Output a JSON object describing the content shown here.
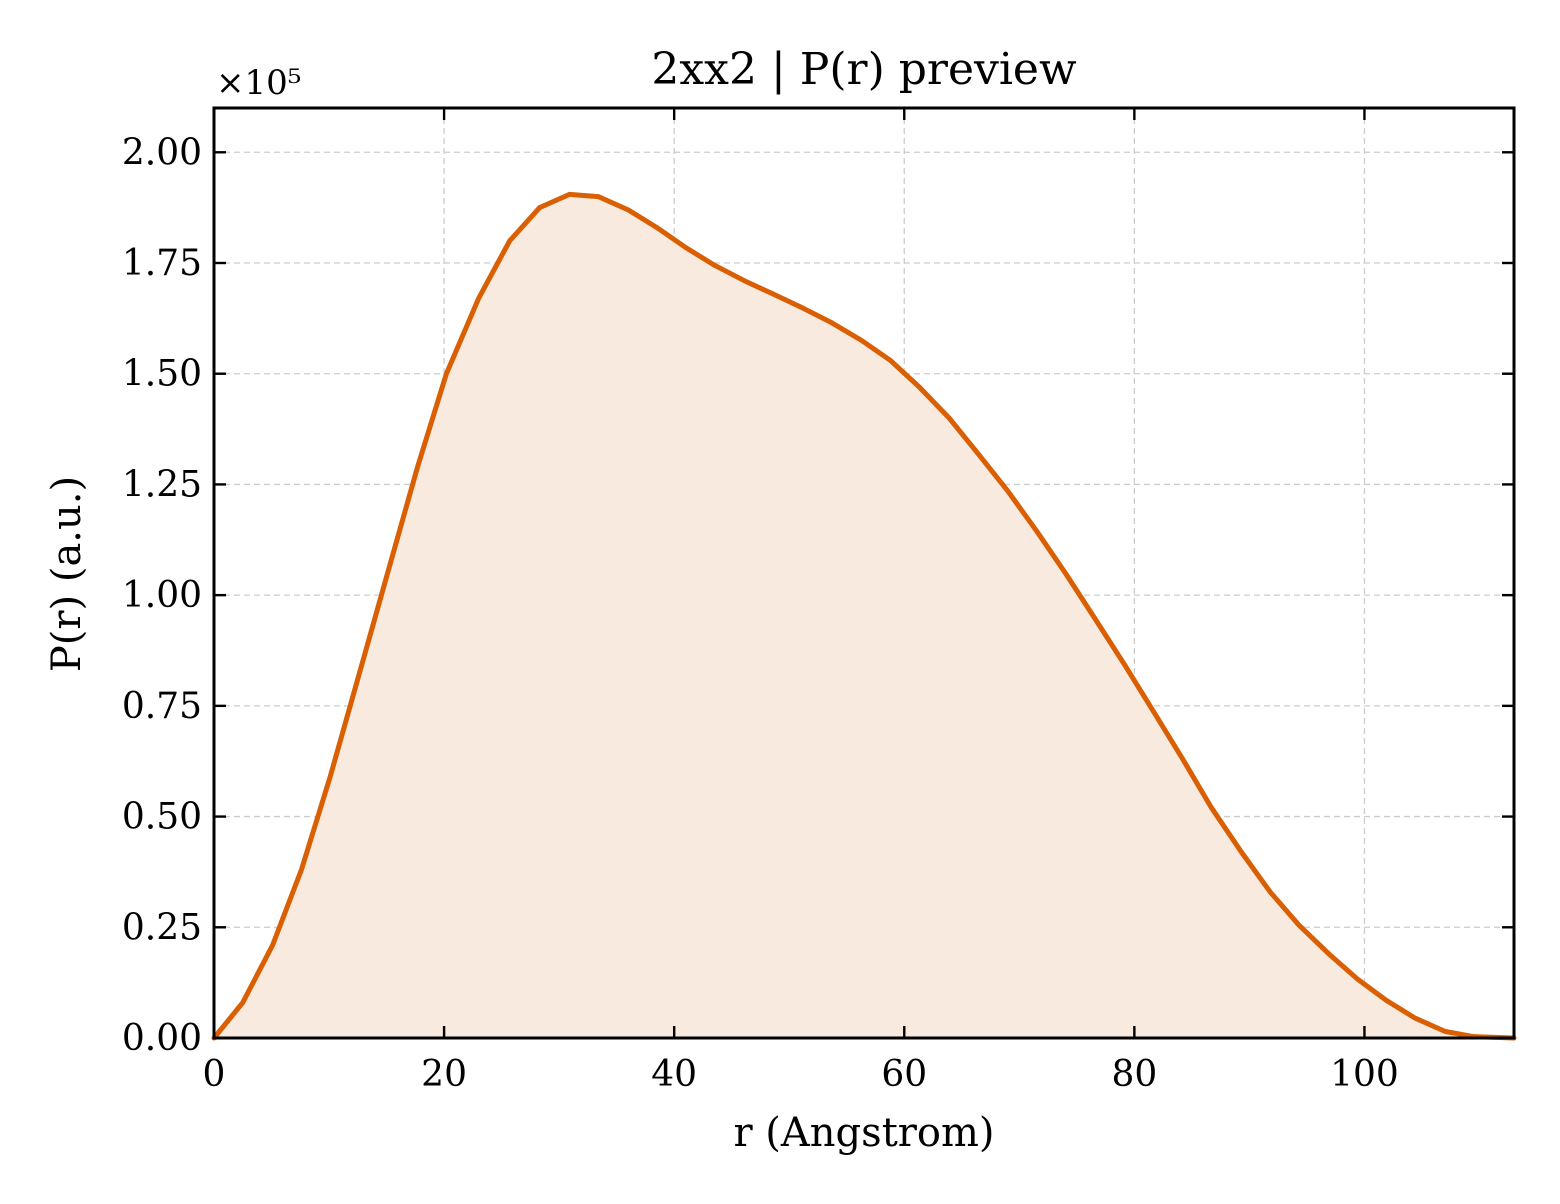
{
  "chart_data": {
    "type": "area",
    "title": "2xx2 | P(r) preview",
    "xlabel": "r (Angstrom)",
    "ylabel": "P(r) (a.u.)",
    "y_multiplier_label": "×10⁵",
    "xlim": [
      0,
      113
    ],
    "ylim": [
      0,
      2.1
    ],
    "y_scale_factor": 100000,
    "x_ticks": [
      0,
      20,
      40,
      60,
      80,
      100
    ],
    "x_tick_labels": [
      "0",
      "20",
      "40",
      "60",
      "80",
      "100"
    ],
    "y_ticks": [
      0,
      0.25,
      0.5,
      0.75,
      1.0,
      1.25,
      1.5,
      1.75,
      2.0
    ],
    "y_tick_labels": [
      "0.00",
      "0.25",
      "0.50",
      "0.75",
      "1.00",
      "1.25",
      "1.50",
      "1.75",
      "2.00"
    ],
    "grid": true,
    "line_color": "#d95f02",
    "fill_color": "#f8eadf",
    "series": [
      {
        "x": [
          0,
          2.5,
          5.1,
          7.6,
          10.1,
          12.6,
          15.2,
          17.7,
          20.2,
          23.0,
          25.7,
          28.3,
          30.9,
          33.4,
          36.0,
          38.5,
          41.0,
          43.5,
          46.1,
          48.6,
          51.2,
          53.7,
          56.3,
          58.8,
          61.3,
          63.9,
          66.4,
          69.0,
          71.5,
          74.0,
          76.5,
          79.1,
          81.6,
          84.2,
          86.7,
          89.3,
          91.8,
          94.3,
          96.9,
          99.4,
          101.9,
          104.4,
          107.0,
          109.5,
          113.0
        ],
        "y": [
          0.0,
          0.08,
          0.21,
          0.38,
          0.59,
          0.82,
          1.06,
          1.29,
          1.5,
          1.67,
          1.8,
          1.875,
          1.905,
          1.9,
          1.87,
          1.83,
          1.785,
          1.745,
          1.71,
          1.68,
          1.648,
          1.615,
          1.575,
          1.53,
          1.47,
          1.4,
          1.32,
          1.235,
          1.145,
          1.05,
          0.95,
          0.845,
          0.74,
          0.63,
          0.52,
          0.42,
          0.33,
          0.255,
          0.19,
          0.133,
          0.085,
          0.045,
          0.015,
          0.003,
          0.0
        ]
      }
    ]
  }
}
